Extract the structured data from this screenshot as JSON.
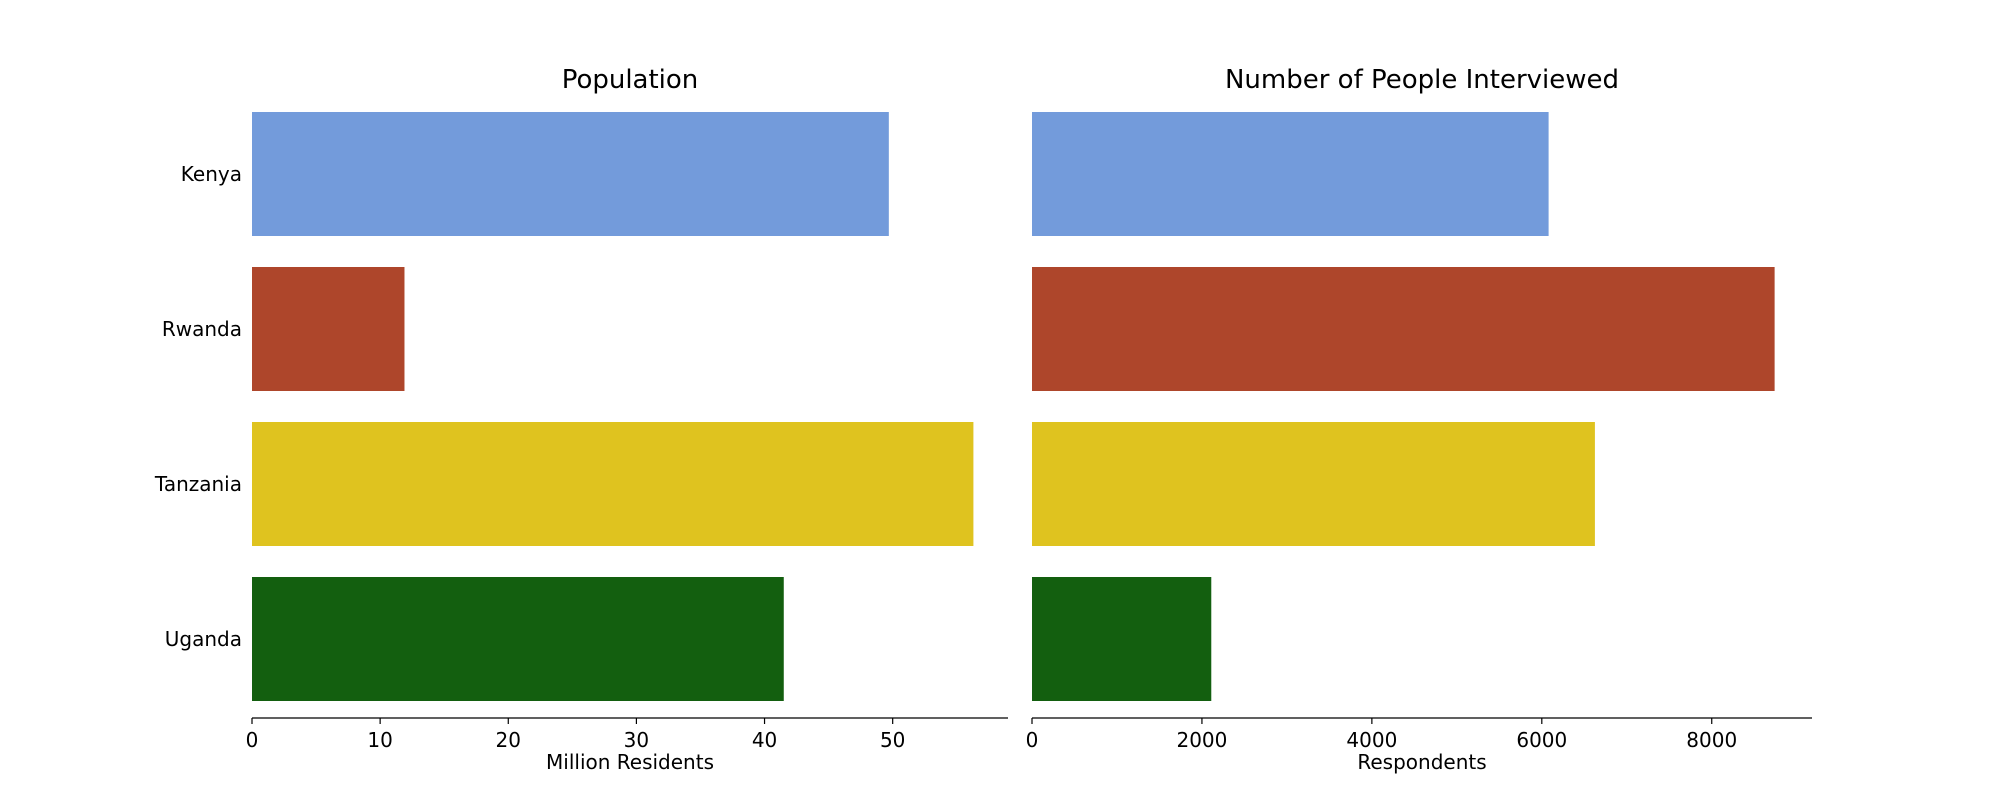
{
  "chart_data": [
    {
      "type": "bar",
      "orientation": "horizontal",
      "title": "Population",
      "xlabel": "Million Residents",
      "ylabel": "",
      "categories": [
        "Kenya",
        "Rwanda",
        "Tanzania",
        "Uganda"
      ],
      "values": [
        49.7,
        11.9,
        56.3,
        41.5
      ],
      "colors": [
        "#739BDB",
        "#AE462B",
        "#DFC31F",
        "#135F0F"
      ],
      "xlim": [
        0,
        59
      ],
      "xticks": [
        0,
        10,
        20,
        30,
        40,
        50
      ],
      "xtick_labels": [
        "0",
        "10",
        "20",
        "30",
        "40",
        "50"
      ],
      "grid": false
    },
    {
      "type": "bar",
      "orientation": "horizontal",
      "title": "Number of People Interviewed",
      "xlabel": "Respondents",
      "ylabel": "",
      "categories": [
        "Kenya",
        "Rwanda",
        "Tanzania",
        "Uganda"
      ],
      "values": [
        6080,
        8740,
        6625,
        2110
      ],
      "colors": [
        "#739BDB",
        "#AE462B",
        "#DFC31F",
        "#135F0F"
      ],
      "xlim": [
        0,
        9180
      ],
      "xticks": [
        0,
        2000,
        4000,
        6000,
        8000
      ],
      "xtick_labels": [
        "0",
        "2000",
        "4000",
        "6000",
        "8000"
      ],
      "grid": false
    }
  ]
}
